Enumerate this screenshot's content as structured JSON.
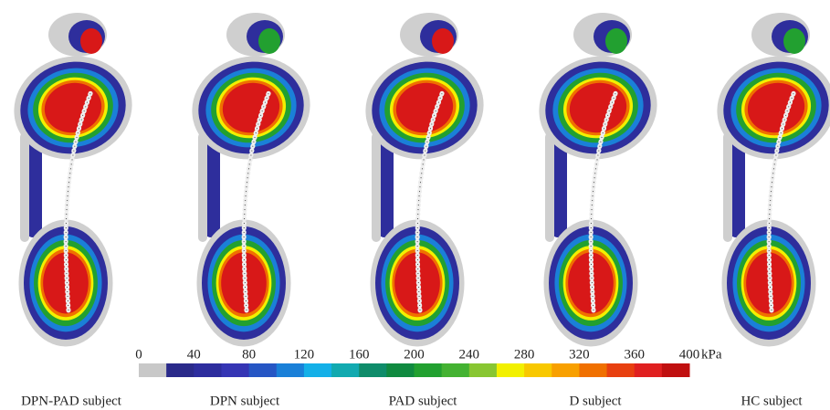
{
  "panels": [
    {
      "label": "DPN-PAD subject"
    },
    {
      "label": "DPN subject"
    },
    {
      "label": "PAD subject"
    },
    {
      "label": "D subject"
    },
    {
      "label": "HC subject"
    }
  ],
  "colorbar": {
    "min": 0,
    "max": 400,
    "ticks": [
      0,
      40,
      80,
      120,
      160,
      200,
      240,
      280,
      320,
      360,
      400
    ],
    "unit": "kPa",
    "colors": [
      "#c8c8c8",
      "#2a2a8a",
      "#2d2d9e",
      "#3535b4",
      "#2656c4",
      "#1a80d8",
      "#14b0e8",
      "#12aab0",
      "#0f8c6a",
      "#108a40",
      "#22a030",
      "#44b232",
      "#88c632",
      "#f2f000",
      "#f8c800",
      "#f8a000",
      "#f07000",
      "#e84010",
      "#e02020",
      "#c01010"
    ]
  }
}
